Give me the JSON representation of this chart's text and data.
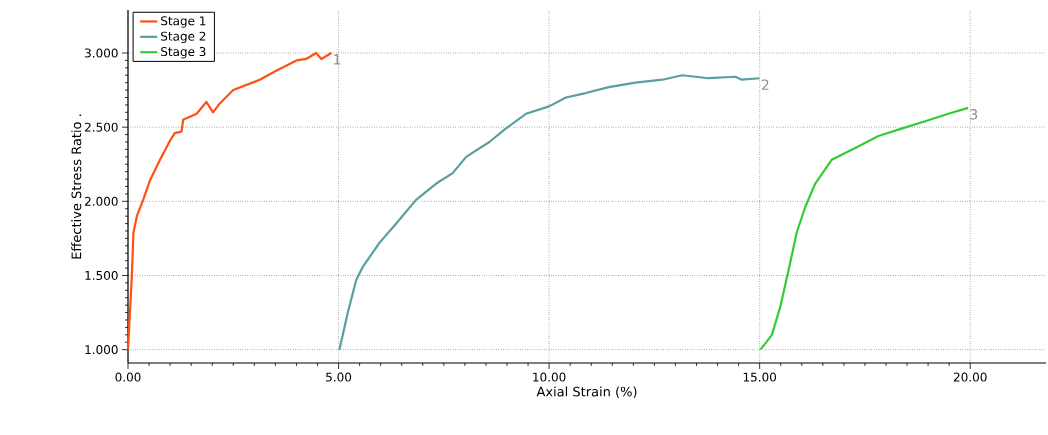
{
  "chart_data": {
    "type": "line",
    "xlabel": "Axial Strain (%)",
    "ylabel": "Effective Stress Ratio .",
    "xlim": [
      0,
      21.8
    ],
    "ylim": [
      0.91,
      3.29
    ],
    "xticks": [
      {
        "value": 0,
        "label": "0.00"
      },
      {
        "value": 5,
        "label": "5.00"
      },
      {
        "value": 10,
        "label": "10.00"
      },
      {
        "value": 15,
        "label": "15.00"
      },
      {
        "value": 20,
        "label": "20.00"
      }
    ],
    "yticks": [
      {
        "value": 1,
        "label": "1.000"
      },
      {
        "value": 1.5,
        "label": "1.500"
      },
      {
        "value": 2,
        "label": "2.000"
      },
      {
        "value": 2.5,
        "label": "2.500"
      },
      {
        "value": 3,
        "label": "3.000"
      }
    ],
    "grid": true,
    "legend": "top left",
    "marker": "none",
    "line_style": "solid",
    "series": [
      {
        "name": "Stage 1",
        "color": "#ff5014",
        "x": [
          0.0,
          0.09,
          0.13,
          0.21,
          0.36,
          0.52,
          0.76,
          1.0,
          1.11,
          1.27,
          1.31,
          1.63,
          1.86,
          2.02,
          2.18,
          2.5,
          3.13,
          3.52,
          4.0,
          4.23,
          4.47,
          4.59,
          4.83
        ],
        "values": [
          1.0,
          1.49,
          1.79,
          1.9,
          2.01,
          2.14,
          2.28,
          2.41,
          2.46,
          2.47,
          2.55,
          2.59,
          2.67,
          2.6,
          2.66,
          2.75,
          2.82,
          2.88,
          2.95,
          2.96,
          3.0,
          2.96,
          3.0
        ]
      },
      {
        "name": "Stage 2",
        "color": "#5a9ea0",
        "x": [
          5.02,
          5.22,
          5.42,
          5.58,
          5.97,
          6.37,
          6.84,
          7.32,
          7.71,
          8.03,
          8.58,
          8.97,
          9.45,
          10.0,
          10.4,
          10.87,
          11.42,
          12.05,
          12.69,
          13.16,
          13.79,
          14.42,
          14.58,
          15.0
        ],
        "values": [
          1.0,
          1.25,
          1.47,
          1.56,
          1.72,
          1.85,
          2.01,
          2.12,
          2.19,
          2.3,
          2.4,
          2.49,
          2.59,
          2.64,
          2.7,
          2.73,
          2.77,
          2.8,
          2.82,
          2.85,
          2.83,
          2.84,
          2.82,
          2.83
        ]
      },
      {
        "name": "Stage 3",
        "color": "#33cc33",
        "x": [
          15.02,
          15.29,
          15.49,
          15.69,
          15.88,
          16.08,
          16.32,
          16.71,
          17.27,
          17.82,
          18.37,
          18.93,
          19.48,
          19.95
        ],
        "values": [
          1.0,
          1.1,
          1.29,
          1.54,
          1.79,
          1.96,
          2.12,
          2.28,
          2.36,
          2.44,
          2.49,
          2.54,
          2.59,
          2.63
        ]
      }
    ],
    "annotations": [
      {
        "text": "1",
        "x": 4.83,
        "y": 3.0
      },
      {
        "text": "2",
        "x": 15.0,
        "y": 2.83
      },
      {
        "text": "3",
        "x": 19.95,
        "y": 2.63
      }
    ]
  }
}
